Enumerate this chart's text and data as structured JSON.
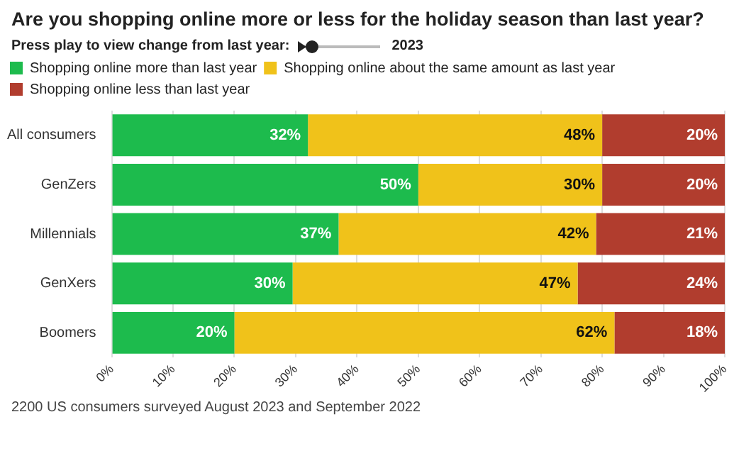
{
  "chart_data": {
    "type": "bar",
    "orientation": "horizontal",
    "stacked": true,
    "title": "Are you shopping online more or less for the holiday season than last year?",
    "annotations": [
      "Press play to view change from last year:",
      "2023",
      "2200 US consumers surveyed August 2023 and September 2022"
    ],
    "categories": [
      "All consumers",
      "GenZers",
      "Millennials",
      "GenXers",
      "Boomers"
    ],
    "series": [
      {
        "name": "Shopping online more than last year",
        "color": "#1dbb4d",
        "values": [
          32,
          50,
          37,
          29.5,
          20
        ],
        "value_labels": [
          "32%",
          "50%",
          "37%",
          "30%",
          "20%"
        ]
      },
      {
        "name": "Shopping online about the same amount as last year",
        "color": "#f0c21a",
        "values": [
          48,
          30,
          42,
          46.5,
          62
        ],
        "value_labels": [
          "48%",
          "30%",
          "42%",
          "47%",
          "62%"
        ]
      },
      {
        "name": "Shopping online less than last year",
        "color": "#b13d2e",
        "values": [
          20,
          20,
          21,
          24,
          18
        ],
        "value_labels": [
          "20%",
          "20%",
          "21%",
          "24%",
          "18%"
        ]
      }
    ],
    "xlim": [
      0,
      100
    ],
    "xticks": [
      {
        "value": 0,
        "label": "0%"
      },
      {
        "value": 10,
        "label": "10%"
      },
      {
        "value": 20,
        "label": "20%"
      },
      {
        "value": 30,
        "label": "30%"
      },
      {
        "value": 40,
        "label": "40%"
      },
      {
        "value": 50,
        "label": "50%"
      },
      {
        "value": 60,
        "label": "60%"
      },
      {
        "value": 70,
        "label": "70%"
      },
      {
        "value": 80,
        "label": "80%"
      },
      {
        "value": 90,
        "label": "90%"
      },
      {
        "value": 100,
        "label": "100%"
      }
    ],
    "grid": "x",
    "legend": "top left"
  }
}
